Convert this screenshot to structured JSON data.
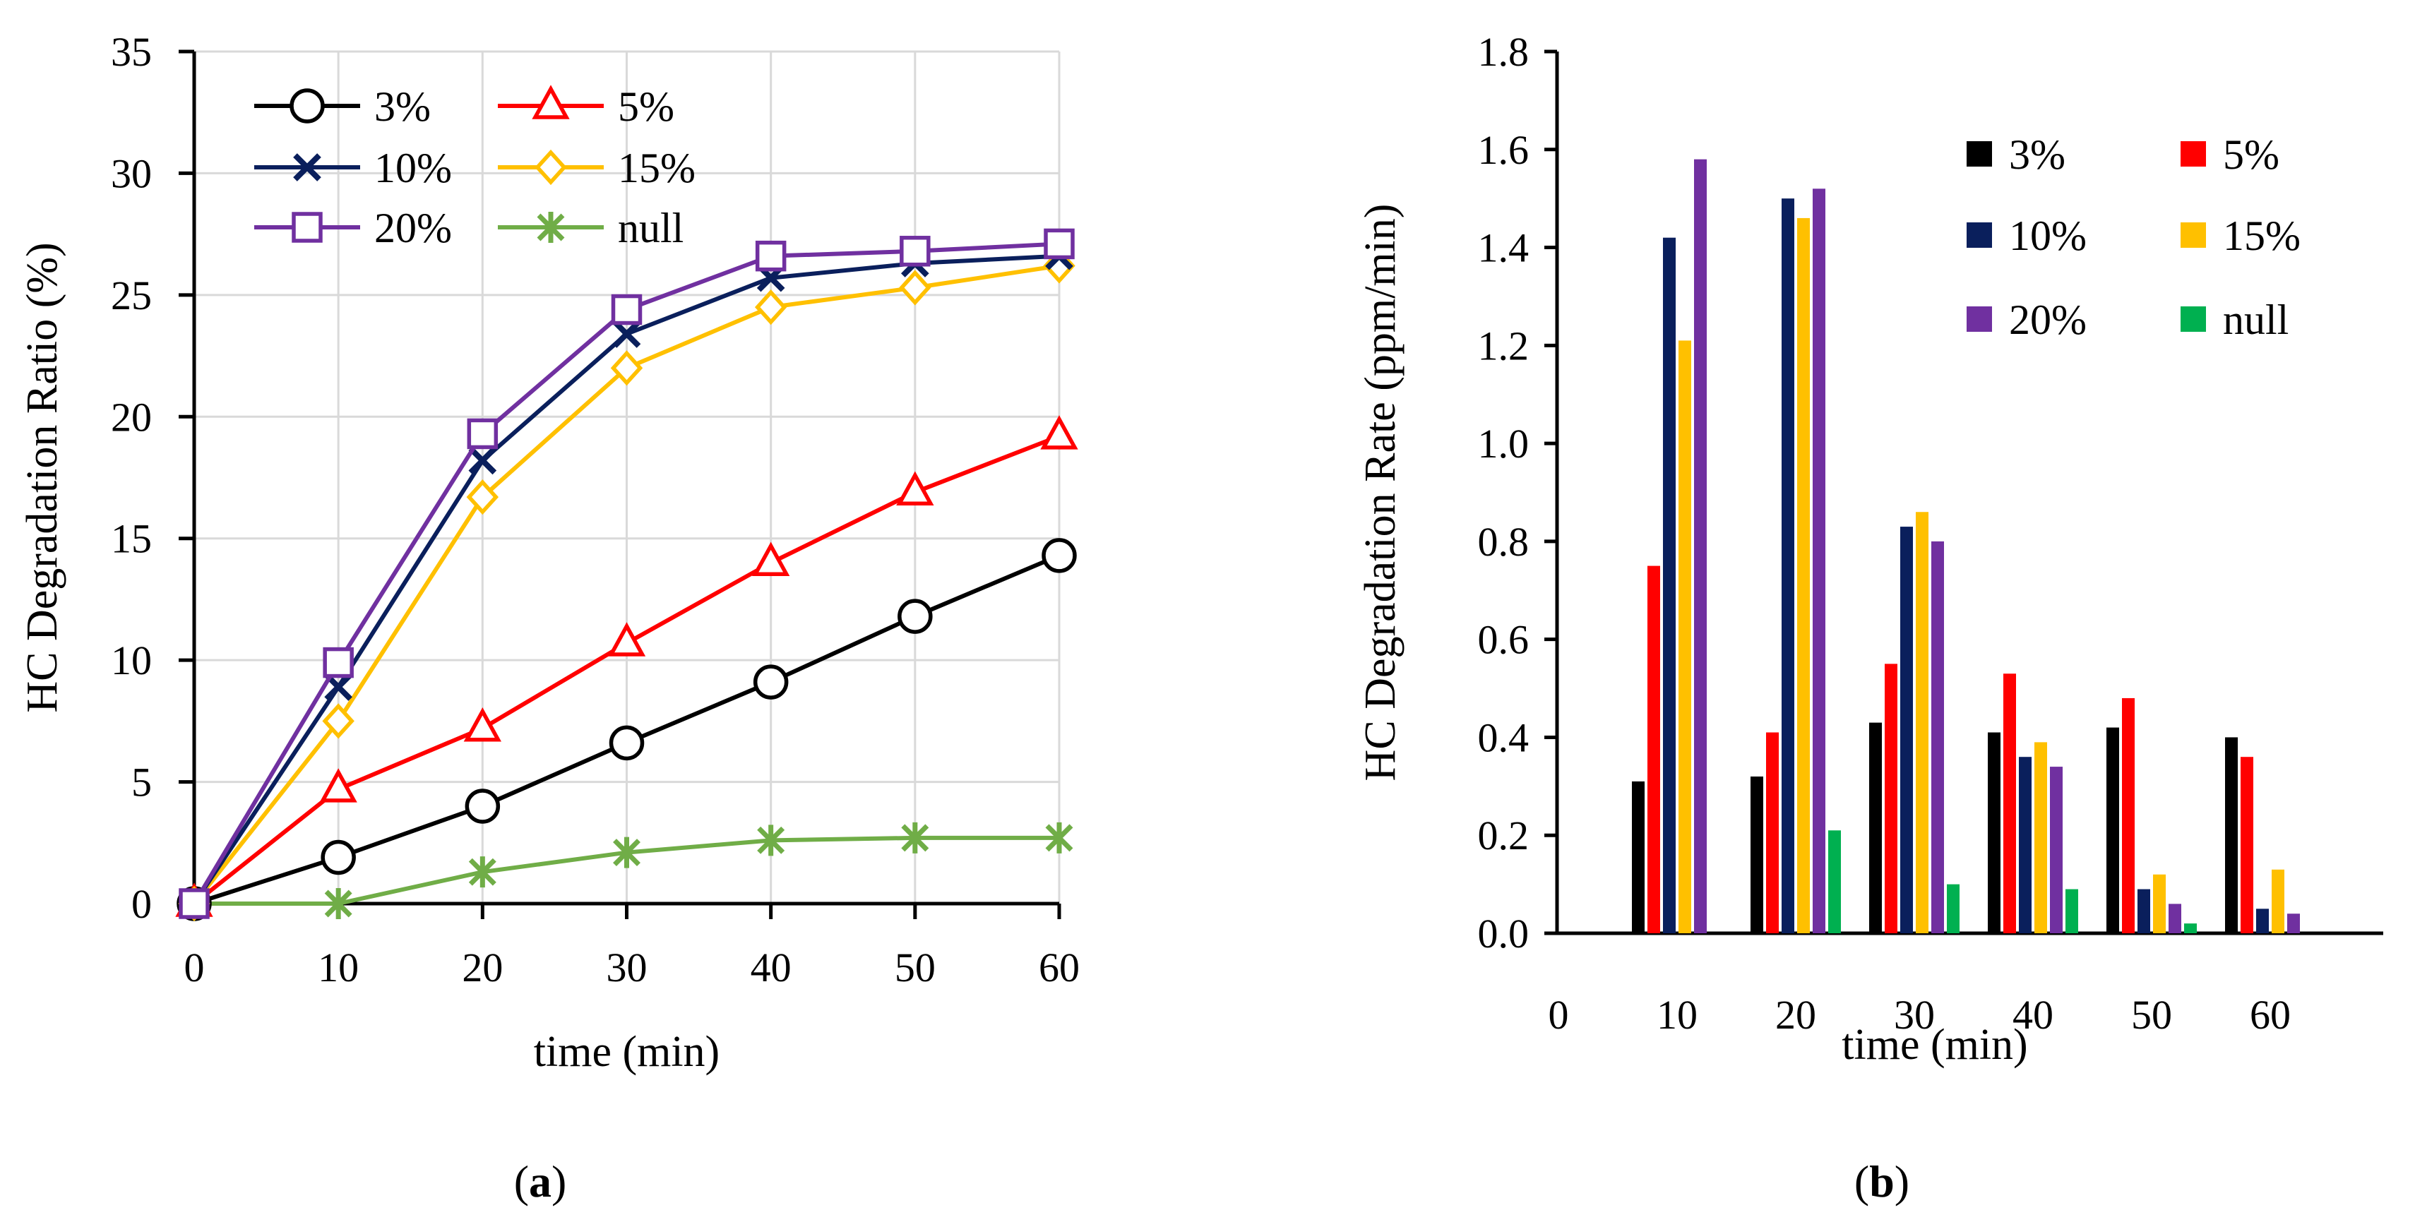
{
  "chart_data": [
    {
      "panel": "a",
      "type": "line",
      "xlabel": "time  (min)",
      "ylabel": "HC  Degradation  Ratio  (%)",
      "xlim": [
        0,
        60
      ],
      "ylim": [
        0,
        35
      ],
      "x": [
        0,
        10,
        20,
        30,
        40,
        50,
        60
      ],
      "xticks": [
        "0",
        "10",
        "20",
        "30",
        "40",
        "50",
        "60"
      ],
      "yticks": [
        "0",
        "5",
        "10",
        "15",
        "20",
        "25",
        "30",
        "35"
      ],
      "grid": true,
      "legend_position": "top-left",
      "series": [
        {
          "name": "3%",
          "color": "#000000",
          "marker": "circle",
          "values": [
            0,
            1.9,
            4.0,
            6.6,
            9.1,
            11.8,
            14.3
          ]
        },
        {
          "name": "5%",
          "color": "#ff0000",
          "marker": "triangle",
          "values": [
            0,
            4.7,
            7.2,
            10.7,
            14.0,
            16.9,
            19.2
          ]
        },
        {
          "name": "10%",
          "color": "#0a1f5c",
          "marker": "x",
          "values": [
            0,
            8.9,
            18.2,
            23.4,
            25.7,
            26.3,
            26.6
          ]
        },
        {
          "name": "15%",
          "color": "#ffc000",
          "marker": "diamond",
          "values": [
            0,
            7.5,
            16.7,
            22.0,
            24.5,
            25.3,
            26.2
          ]
        },
        {
          "name": "20%",
          "color": "#7030a0",
          "marker": "square",
          "values": [
            0,
            9.9,
            19.3,
            24.4,
            26.6,
            26.8,
            27.1
          ]
        },
        {
          "name": "null",
          "color": "#70ad47",
          "marker": "star",
          "values": [
            0,
            0.0,
            1.3,
            2.1,
            2.6,
            2.7,
            2.7
          ]
        }
      ],
      "caption_open": "(",
      "caption_letter": "a",
      "caption_close": ")"
    },
    {
      "panel": "b",
      "type": "bar",
      "xlabel": "time  (min)",
      "ylabel": "HC  Degradation  Rate  (ppm/min)",
      "ylim": [
        0,
        1.8
      ],
      "categories": [
        "10",
        "20",
        "30",
        "40",
        "50",
        "60"
      ],
      "x_zero_label": "0",
      "yticks": [
        "0.0",
        "0.2",
        "0.4",
        "0.6",
        "0.8",
        "1.0",
        "1.2",
        "1.4",
        "1.6",
        "1.8"
      ],
      "grid": false,
      "legend_position": "top-right",
      "series": [
        {
          "name": "3%",
          "color": "#000000",
          "values": [
            0.31,
            0.32,
            0.43,
            0.41,
            0.42,
            0.4
          ]
        },
        {
          "name": "5%",
          "color": "#ff0000",
          "values": [
            0.75,
            0.41,
            0.55,
            0.53,
            0.48,
            0.36
          ]
        },
        {
          "name": "10%",
          "color": "#0a1f5c",
          "values": [
            1.42,
            1.5,
            0.83,
            0.36,
            0.09,
            0.05
          ]
        },
        {
          "name": "15%",
          "color": "#ffc000",
          "values": [
            1.21,
            1.46,
            0.86,
            0.39,
            0.12,
            0.13
          ]
        },
        {
          "name": "20%",
          "color": "#7030a0",
          "values": [
            1.58,
            1.52,
            0.8,
            0.34,
            0.06,
            0.04
          ]
        },
        {
          "name": "null",
          "color": "#00b050",
          "values": [
            0.0,
            0.21,
            0.1,
            0.09,
            0.02,
            0.0
          ]
        }
      ],
      "caption_open": "(",
      "caption_letter": "b",
      "caption_close": ")"
    }
  ]
}
